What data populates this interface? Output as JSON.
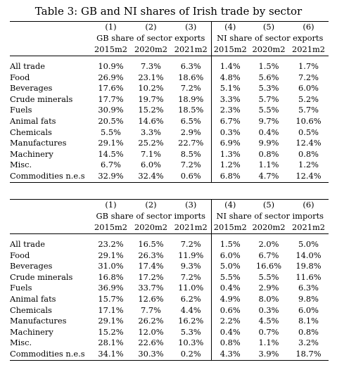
{
  "title": "Table 3: GB and NI shares of Irish trade by sector",
  "panels": [
    {
      "col_numbers": [
        "(1)",
        "(2)",
        "(3)",
        "(4)",
        "(5)",
        "(6)"
      ],
      "gb_header": "GB share of sector exports",
      "ni_header": "NI share of sector exports",
      "years": [
        "2015m2",
        "2020m2",
        "2021m2",
        "2015m2",
        "2020m2",
        "2021m2"
      ],
      "rows": [
        {
          "label": "All trade",
          "values": [
            "10.9%",
            "7.3%",
            "6.3%",
            "1.4%",
            "1.5%",
            "1.7%"
          ]
        },
        {
          "label": "Food",
          "values": [
            "26.9%",
            "23.1%",
            "18.6%",
            "4.8%",
            "5.6%",
            "7.2%"
          ]
        },
        {
          "label": "Beverages",
          "values": [
            "17.6%",
            "10.2%",
            "7.2%",
            "5.1%",
            "5.3%",
            "6.0%"
          ]
        },
        {
          "label": "Crude minerals",
          "values": [
            "17.7%",
            "19.7%",
            "18.9%",
            "3.3%",
            "5.7%",
            "5.2%"
          ]
        },
        {
          "label": "Fuels",
          "values": [
            "30.9%",
            "15.2%",
            "18.5%",
            "2.3%",
            "5.5%",
            "5.7%"
          ]
        },
        {
          "label": "Animal fats",
          "values": [
            "20.5%",
            "14.6%",
            "6.5%",
            "6.7%",
            "9.7%",
            "10.6%"
          ]
        },
        {
          "label": "Chemicals",
          "values": [
            "5.5%",
            "3.3%",
            "2.9%",
            "0.3%",
            "0.4%",
            "0.5%"
          ]
        },
        {
          "label": "Manufactures",
          "values": [
            "29.1%",
            "25.2%",
            "22.7%",
            "6.9%",
            "9.9%",
            "12.4%"
          ]
        },
        {
          "label": "Machinery",
          "values": [
            "14.5%",
            "7.1%",
            "8.5%",
            "1.3%",
            "0.8%",
            "0.8%"
          ]
        },
        {
          "label": "Misc.",
          "values": [
            "6.7%",
            "6.0%",
            "7.2%",
            "1.2%",
            "1.1%",
            "1.2%"
          ]
        },
        {
          "label": "Commodities n.e.s",
          "values": [
            "32.9%",
            "32.4%",
            "0.6%",
            "6.8%",
            "4.7%",
            "12.4%"
          ]
        }
      ]
    },
    {
      "col_numbers": [
        "(1)",
        "(2)",
        "(3)",
        "(4)",
        "(5)",
        "(6)"
      ],
      "gb_header": "GB share of sector imports",
      "ni_header": "NI share of sector imports",
      "years": [
        "2015m2",
        "2020m2",
        "2021m2",
        "2015m2",
        "2020m2",
        "2021m2"
      ],
      "rows": [
        {
          "label": "All trade",
          "values": [
            "23.2%",
            "16.5%",
            "7.2%",
            "1.5%",
            "2.0%",
            "5.0%"
          ]
        },
        {
          "label": "Food",
          "values": [
            "29.1%",
            "26.3%",
            "11.9%",
            "6.0%",
            "6.7%",
            "14.0%"
          ]
        },
        {
          "label": "Beverages",
          "values": [
            "31.0%",
            "17.4%",
            "9.3%",
            "5.0%",
            "16.6%",
            "19.8%"
          ]
        },
        {
          "label": "Crude minerals",
          "values": [
            "16.8%",
            "17.2%",
            "7.2%",
            "5.5%",
            "5.5%",
            "11.6%"
          ]
        },
        {
          "label": "Fuels",
          "values": [
            "36.9%",
            "33.7%",
            "11.0%",
            "0.4%",
            "2.9%",
            "6.3%"
          ]
        },
        {
          "label": "Animal fats",
          "values": [
            "15.7%",
            "12.6%",
            "6.2%",
            "4.9%",
            "8.0%",
            "9.8%"
          ]
        },
        {
          "label": "Chemicals",
          "values": [
            "17.1%",
            "7.7%",
            "4.4%",
            "0.6%",
            "0.3%",
            "6.0%"
          ]
        },
        {
          "label": "Manufactures",
          "values": [
            "29.1%",
            "26.2%",
            "16.2%",
            "2.2%",
            "4.5%",
            "8.1%"
          ]
        },
        {
          "label": "Machinery",
          "values": [
            "15.2%",
            "12.0%",
            "5.3%",
            "0.4%",
            "0.7%",
            "0.8%"
          ]
        },
        {
          "label": "Misc.",
          "values": [
            "28.1%",
            "22.6%",
            "10.3%",
            "0.8%",
            "1.1%",
            "3.2%"
          ]
        },
        {
          "label": "Commodities n.e.s",
          "values": [
            "34.1%",
            "30.3%",
            "0.2%",
            "4.3%",
            "3.9%",
            "18.7%"
          ]
        }
      ]
    }
  ]
}
